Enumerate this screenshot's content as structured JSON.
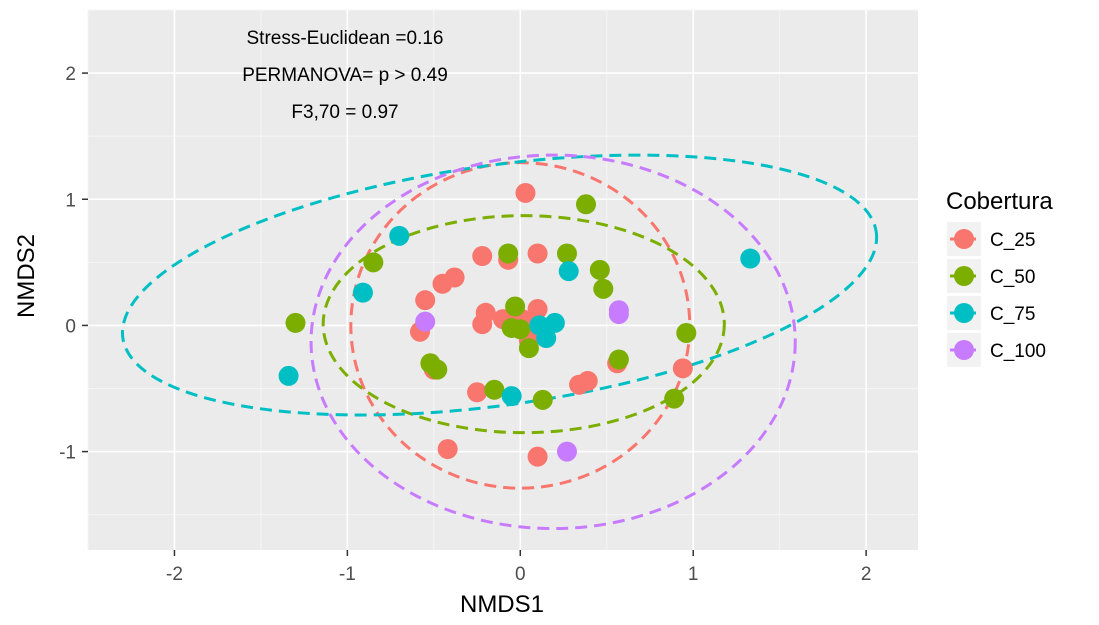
{
  "chart_data": {
    "type": "scatter",
    "xlabel": "NMDS1",
    "ylabel": "NMDS2",
    "xlim": [
      -2.5,
      2.3
    ],
    "ylim": [
      -1.78,
      2.5
    ],
    "x_ticks": [
      -2,
      -1,
      0,
      1,
      2
    ],
    "y_ticks": [
      -1,
      0,
      1,
      2
    ],
    "x_tick_labels": [
      "-2",
      "-1",
      "0",
      "1",
      "2"
    ],
    "y_tick_labels": [
      "-1",
      "0",
      "1",
      "2"
    ],
    "grid": true,
    "legend_position": "right",
    "legend_title": "Cobertura",
    "annotations": [
      "Stress-Euclidean =0.16",
      "PERMANOVA= p > 0.49",
      "F3,70 = 0.97"
    ],
    "series": [
      {
        "name": "C_25",
        "color": "#F8766D",
        "points": [
          [
            0.03,
            1.05
          ],
          [
            -0.22,
            0.55
          ],
          [
            -0.07,
            0.52
          ],
          [
            0.1,
            0.57
          ],
          [
            -0.55,
            0.2
          ],
          [
            -0.45,
            0.33
          ],
          [
            -0.38,
            0.38
          ],
          [
            -0.58,
            -0.05
          ],
          [
            -0.2,
            0.1
          ],
          [
            -0.22,
            0.01
          ],
          [
            0.01,
            0.05
          ],
          [
            0.05,
            -0.12
          ],
          [
            -0.1,
            0.05
          ],
          [
            0.1,
            0.13
          ],
          [
            0.08,
            0.02
          ],
          [
            -0.5,
            -0.35
          ],
          [
            -0.25,
            -0.53
          ],
          [
            0.34,
            -0.47
          ],
          [
            0.39,
            -0.44
          ],
          [
            0.56,
            -0.3
          ],
          [
            0.94,
            -0.34
          ],
          [
            -0.42,
            -0.98
          ],
          [
            0.1,
            -1.04
          ]
        ]
      },
      {
        "name": "C_50",
        "color": "#7CAE00",
        "points": [
          [
            0.38,
            0.96
          ],
          [
            -0.85,
            0.5
          ],
          [
            -0.07,
            0.57
          ],
          [
            0.27,
            0.57
          ],
          [
            0.46,
            0.44
          ],
          [
            0.48,
            0.29
          ],
          [
            -1.3,
            0.02
          ],
          [
            -0.03,
            0.15
          ],
          [
            -0.05,
            -0.02
          ],
          [
            0.0,
            -0.03
          ],
          [
            0.05,
            -0.18
          ],
          [
            0.57,
            -0.27
          ],
          [
            -0.52,
            -0.3
          ],
          [
            -0.48,
            -0.35
          ],
          [
            -0.15,
            -0.51
          ],
          [
            0.13,
            -0.59
          ],
          [
            0.96,
            -0.06
          ],
          [
            0.89,
            -0.58
          ]
        ]
      },
      {
        "name": "C_75",
        "color": "#00BFC4",
        "points": [
          [
            -0.7,
            0.71
          ],
          [
            0.28,
            0.43
          ],
          [
            -0.91,
            0.26
          ],
          [
            1.33,
            0.53
          ],
          [
            0.2,
            0.02
          ],
          [
            0.15,
            -0.1
          ],
          [
            0.11,
            0.0
          ],
          [
            -1.34,
            -0.4
          ],
          [
            -0.05,
            -0.56
          ]
        ]
      },
      {
        "name": "C_100",
        "color": "#C77CFF",
        "points": [
          [
            0.57,
            0.12
          ],
          [
            0.57,
            0.09
          ],
          [
            -0.55,
            0.03
          ],
          [
            0.27,
            -1.0
          ]
        ]
      }
    ],
    "ellipses": [
      {
        "series": "C_25",
        "color": "#F8766D",
        "center": [
          0.0,
          0.0
        ],
        "rx": 0.98,
        "ry": 1.29,
        "rotation_deg": 0
      },
      {
        "series": "C_50",
        "color": "#7CAE00",
        "center": [
          0.02,
          0.01
        ],
        "rx": 1.16,
        "ry": 0.86,
        "rotation_deg": 0
      },
      {
        "series": "C_75",
        "color": "#00BFC4",
        "center": [
          -0.12,
          0.32
        ],
        "rx": 2.2,
        "ry": 0.95,
        "rotation_deg": 8
      },
      {
        "series": "C_100",
        "color": "#C77CFF",
        "center": [
          0.19,
          -0.13
        ],
        "rx": 1.4,
        "ry": 1.48,
        "rotation_deg": 0
      }
    ]
  }
}
